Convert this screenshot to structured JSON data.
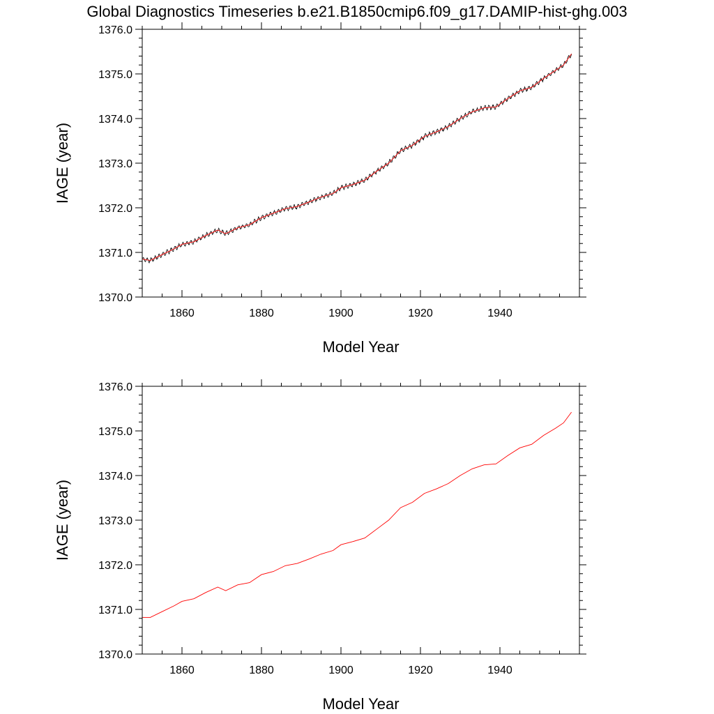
{
  "title": "Global Diagnostics Timeseries b.e21.B1850cmip6.f09_g17.DAMIP-hist-ghg.003",
  "colors": {
    "raw_series": "#000000",
    "smoothed_series": "#ff0000",
    "axes": "#000000"
  },
  "chart_data": [
    {
      "type": "line",
      "xlabel": "Model Year",
      "ylabel": "IAGE (year)",
      "xlim": [
        1850,
        1960
      ],
      "ylim": [
        1370.0,
        1376.0
      ],
      "x_ticks": [
        1860,
        1880,
        1900,
        1920,
        1940
      ],
      "x_tick_labels": [
        "1860",
        "1880",
        "1900",
        "1920",
        "1940"
      ],
      "y_ticks": [
        1370.0,
        1371.0,
        1372.0,
        1373.0,
        1374.0,
        1375.0,
        1376.0
      ],
      "y_tick_labels": [
        "1370.0",
        "1371.0",
        "1372.0",
        "1373.0",
        "1374.0",
        "1375.0",
        "1376.0"
      ],
      "grid": false,
      "series": [
        {
          "color": "#000000",
          "style": "monthly, seasonal oscillation amplitude ~0.05 year",
          "x": [
            1850,
            1852,
            1855,
            1858,
            1860,
            1863,
            1866,
            1869,
            1871,
            1874,
            1877,
            1880,
            1883,
            1886,
            1889,
            1892,
            1895,
            1898,
            1900,
            1903,
            1906,
            1909,
            1912,
            1915,
            1918,
            1921,
            1924,
            1927,
            1930,
            1933,
            1936,
            1939,
            1942,
            1945,
            1948,
            1951,
            1954,
            1956,
            1958
          ],
          "y": [
            1370.85,
            1370.82,
            1370.95,
            1371.08,
            1371.18,
            1371.24,
            1371.38,
            1371.5,
            1371.42,
            1371.55,
            1371.62,
            1371.78,
            1371.88,
            1371.98,
            1372.03,
            1372.13,
            1372.24,
            1372.32,
            1372.45,
            1372.52,
            1372.62,
            1372.82,
            1373.0,
            1373.28,
            1373.4,
            1373.6,
            1373.7,
            1373.82,
            1374.0,
            1374.15,
            1374.24,
            1374.26,
            1374.45,
            1374.62,
            1374.7,
            1374.9,
            1375.08,
            1375.2,
            1375.45
          ]
        },
        {
          "color": "#ff0000",
          "style": "annual mean",
          "x": [
            1850,
            1852,
            1855,
            1858,
            1860,
            1863,
            1866,
            1869,
            1871,
            1874,
            1877,
            1880,
            1883,
            1886,
            1889,
            1892,
            1895,
            1898,
            1900,
            1903,
            1906,
            1909,
            1912,
            1915,
            1918,
            1921,
            1924,
            1927,
            1930,
            1933,
            1936,
            1939,
            1942,
            1945,
            1948,
            1951,
            1954,
            1956,
            1958
          ],
          "y": [
            1370.85,
            1370.82,
            1370.95,
            1371.08,
            1371.18,
            1371.24,
            1371.38,
            1371.5,
            1371.42,
            1371.55,
            1371.62,
            1371.78,
            1371.88,
            1371.98,
            1372.03,
            1372.13,
            1372.24,
            1372.32,
            1372.45,
            1372.52,
            1372.62,
            1372.82,
            1373.0,
            1373.28,
            1373.4,
            1373.6,
            1373.7,
            1373.82,
            1374.0,
            1374.15,
            1374.24,
            1374.26,
            1374.45,
            1374.62,
            1374.7,
            1374.9,
            1375.08,
            1375.2,
            1375.45
          ]
        }
      ]
    },
    {
      "type": "line",
      "xlabel": "Model Year",
      "ylabel": "IAGE (year)",
      "xlim": [
        1850,
        1960
      ],
      "ylim": [
        1370.0,
        1376.0
      ],
      "x_ticks": [
        1860,
        1880,
        1900,
        1920,
        1940
      ],
      "x_tick_labels": [
        "1860",
        "1880",
        "1900",
        "1920",
        "1940"
      ],
      "y_ticks": [
        1370.0,
        1371.0,
        1372.0,
        1373.0,
        1374.0,
        1375.0,
        1376.0
      ],
      "y_tick_labels": [
        "1370.0",
        "1371.0",
        "1372.0",
        "1373.0",
        "1374.0",
        "1375.0",
        "1376.0"
      ],
      "grid": false,
      "series": [
        {
          "color": "#ff0000",
          "style": "annual mean",
          "x": [
            1850,
            1852,
            1855,
            1858,
            1860,
            1863,
            1866,
            1869,
            1871,
            1874,
            1877,
            1880,
            1883,
            1886,
            1889,
            1892,
            1895,
            1898,
            1900,
            1903,
            1906,
            1909,
            1912,
            1915,
            1918,
            1921,
            1924,
            1927,
            1930,
            1933,
            1936,
            1939,
            1942,
            1945,
            1948,
            1951,
            1954,
            1956,
            1958
          ],
          "y": [
            1370.82,
            1370.82,
            1370.95,
            1371.08,
            1371.18,
            1371.24,
            1371.38,
            1371.5,
            1371.42,
            1371.55,
            1371.6,
            1371.78,
            1371.85,
            1371.98,
            1372.03,
            1372.13,
            1372.24,
            1372.32,
            1372.45,
            1372.52,
            1372.6,
            1372.8,
            1373.0,
            1373.28,
            1373.4,
            1373.6,
            1373.7,
            1373.82,
            1374.0,
            1374.15,
            1374.24,
            1374.26,
            1374.45,
            1374.62,
            1374.7,
            1374.9,
            1375.06,
            1375.18,
            1375.42
          ]
        }
      ]
    }
  ]
}
